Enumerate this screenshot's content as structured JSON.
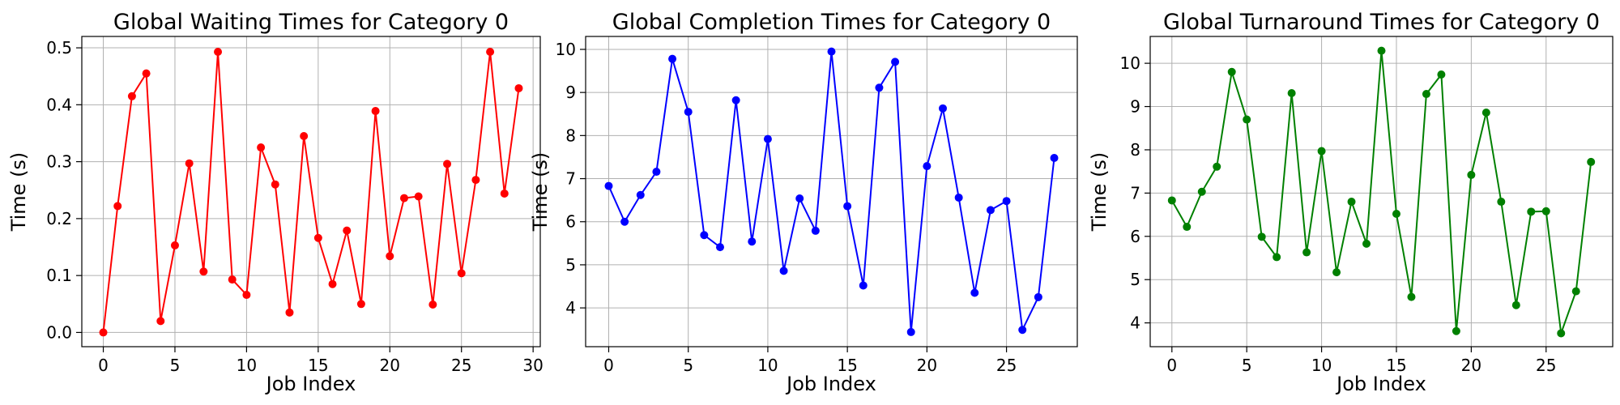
{
  "chart_data": [
    {
      "type": "line",
      "title": "Global Waiting Times for Category 0",
      "xlabel": "Job Index",
      "ylabel": "Time (s)",
      "color": "#ff0000",
      "xlim": [
        -1.5,
        30.5
      ],
      "ylim": [
        -0.025,
        0.52
      ],
      "xticks": [
        0,
        5,
        10,
        15,
        20,
        25,
        30
      ],
      "xtick_labels": [
        "0",
        "5",
        "10",
        "15",
        "20",
        "25",
        "30"
      ],
      "yticks": [
        0.0,
        0.1,
        0.2,
        0.3,
        0.4,
        0.5
      ],
      "ytick_labels": [
        "0.0",
        "0.1",
        "0.2",
        "0.3",
        "0.4",
        "0.5"
      ],
      "grid": true,
      "x": [
        0,
        1,
        2,
        3,
        4,
        5,
        6,
        7,
        8,
        9,
        10,
        11,
        12,
        13,
        14,
        15,
        16,
        17,
        18,
        19,
        20,
        21,
        22,
        23,
        24,
        25,
        26,
        27,
        28,
        29
      ],
      "y": [
        0.0,
        0.222,
        0.415,
        0.455,
        0.02,
        0.153,
        0.297,
        0.107,
        0.493,
        0.093,
        0.066,
        0.325,
        0.26,
        0.035,
        0.345,
        0.166,
        0.085,
        0.179,
        0.05,
        0.389,
        0.134,
        0.236,
        0.239,
        0.049,
        0.296,
        0.104,
        0.268,
        0.493,
        0.244,
        0.429
      ]
    },
    {
      "type": "line",
      "title": "Global Completion Times for Category 0",
      "xlabel": "Job Index",
      "ylabel": "Time (s)",
      "color": "#0000ff",
      "xlim": [
        -1.45,
        29.45
      ],
      "ylim": [
        3.1,
        10.3
      ],
      "xticks": [
        0,
        5,
        10,
        15,
        20,
        25
      ],
      "xtick_labels": [
        "0",
        "5",
        "10",
        "15",
        "20",
        "25"
      ],
      "yticks": [
        4,
        5,
        6,
        7,
        8,
        9,
        10
      ],
      "ytick_labels": [
        "4",
        "5",
        "6",
        "7",
        "8",
        "9",
        "10"
      ],
      "grid": true,
      "x": [
        0,
        1,
        2,
        3,
        4,
        5,
        6,
        7,
        8,
        9,
        10,
        11,
        12,
        13,
        14,
        15,
        16,
        17,
        18,
        19,
        20,
        21,
        22,
        23,
        24,
        25,
        26,
        27,
        28
      ],
      "y": [
        6.83,
        6.0,
        6.62,
        7.16,
        9.78,
        8.55,
        5.69,
        5.41,
        8.82,
        5.54,
        7.92,
        4.86,
        6.54,
        5.79,
        9.95,
        6.36,
        4.52,
        9.11,
        9.71,
        3.44,
        7.29,
        8.63,
        6.56,
        4.35,
        6.27,
        6.48,
        3.49,
        4.25,
        7.48
      ]
    },
    {
      "type": "line",
      "title": "Global Turnaround Times for Category 0",
      "xlabel": "Job Index",
      "ylabel": "Time (s)",
      "color": "#008000",
      "xlim": [
        -1.45,
        29.45
      ],
      "ylim": [
        3.45,
        10.62
      ],
      "xticks": [
        0,
        5,
        10,
        15,
        20,
        25
      ],
      "xtick_labels": [
        "0",
        "5",
        "10",
        "15",
        "20",
        "25"
      ],
      "yticks": [
        4,
        5,
        6,
        7,
        8,
        9,
        10
      ],
      "ytick_labels": [
        "4",
        "5",
        "6",
        "7",
        "8",
        "9",
        "10"
      ],
      "grid": true,
      "x": [
        0,
        1,
        2,
        3,
        4,
        5,
        6,
        7,
        8,
        9,
        10,
        11,
        12,
        13,
        14,
        15,
        16,
        17,
        18,
        19,
        20,
        21,
        22,
        23,
        24,
        25,
        26,
        27,
        28
      ],
      "y": [
        6.83,
        6.22,
        7.03,
        7.61,
        9.8,
        8.7,
        5.99,
        5.52,
        9.31,
        5.63,
        7.97,
        5.17,
        6.8,
        5.83,
        10.29,
        6.52,
        4.6,
        9.29,
        9.74,
        3.81,
        7.42,
        8.86,
        6.8,
        4.41,
        6.57,
        6.58,
        3.76,
        4.73,
        7.72
      ]
    }
  ]
}
